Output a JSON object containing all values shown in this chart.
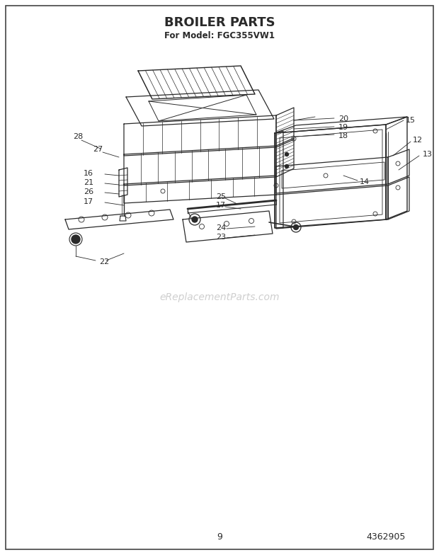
{
  "title": "BROILER PARTS",
  "subtitle": "For Model: FGC355VW1",
  "page_number": "9",
  "part_number": "4362905",
  "background_color": "#ffffff",
  "line_color": "#2a2a2a",
  "watermark_text": "eReplacementParts.com",
  "watermark_color": "#bbbbbb",
  "fig_width": 6.2,
  "fig_height": 7.84,
  "dpi": 100
}
